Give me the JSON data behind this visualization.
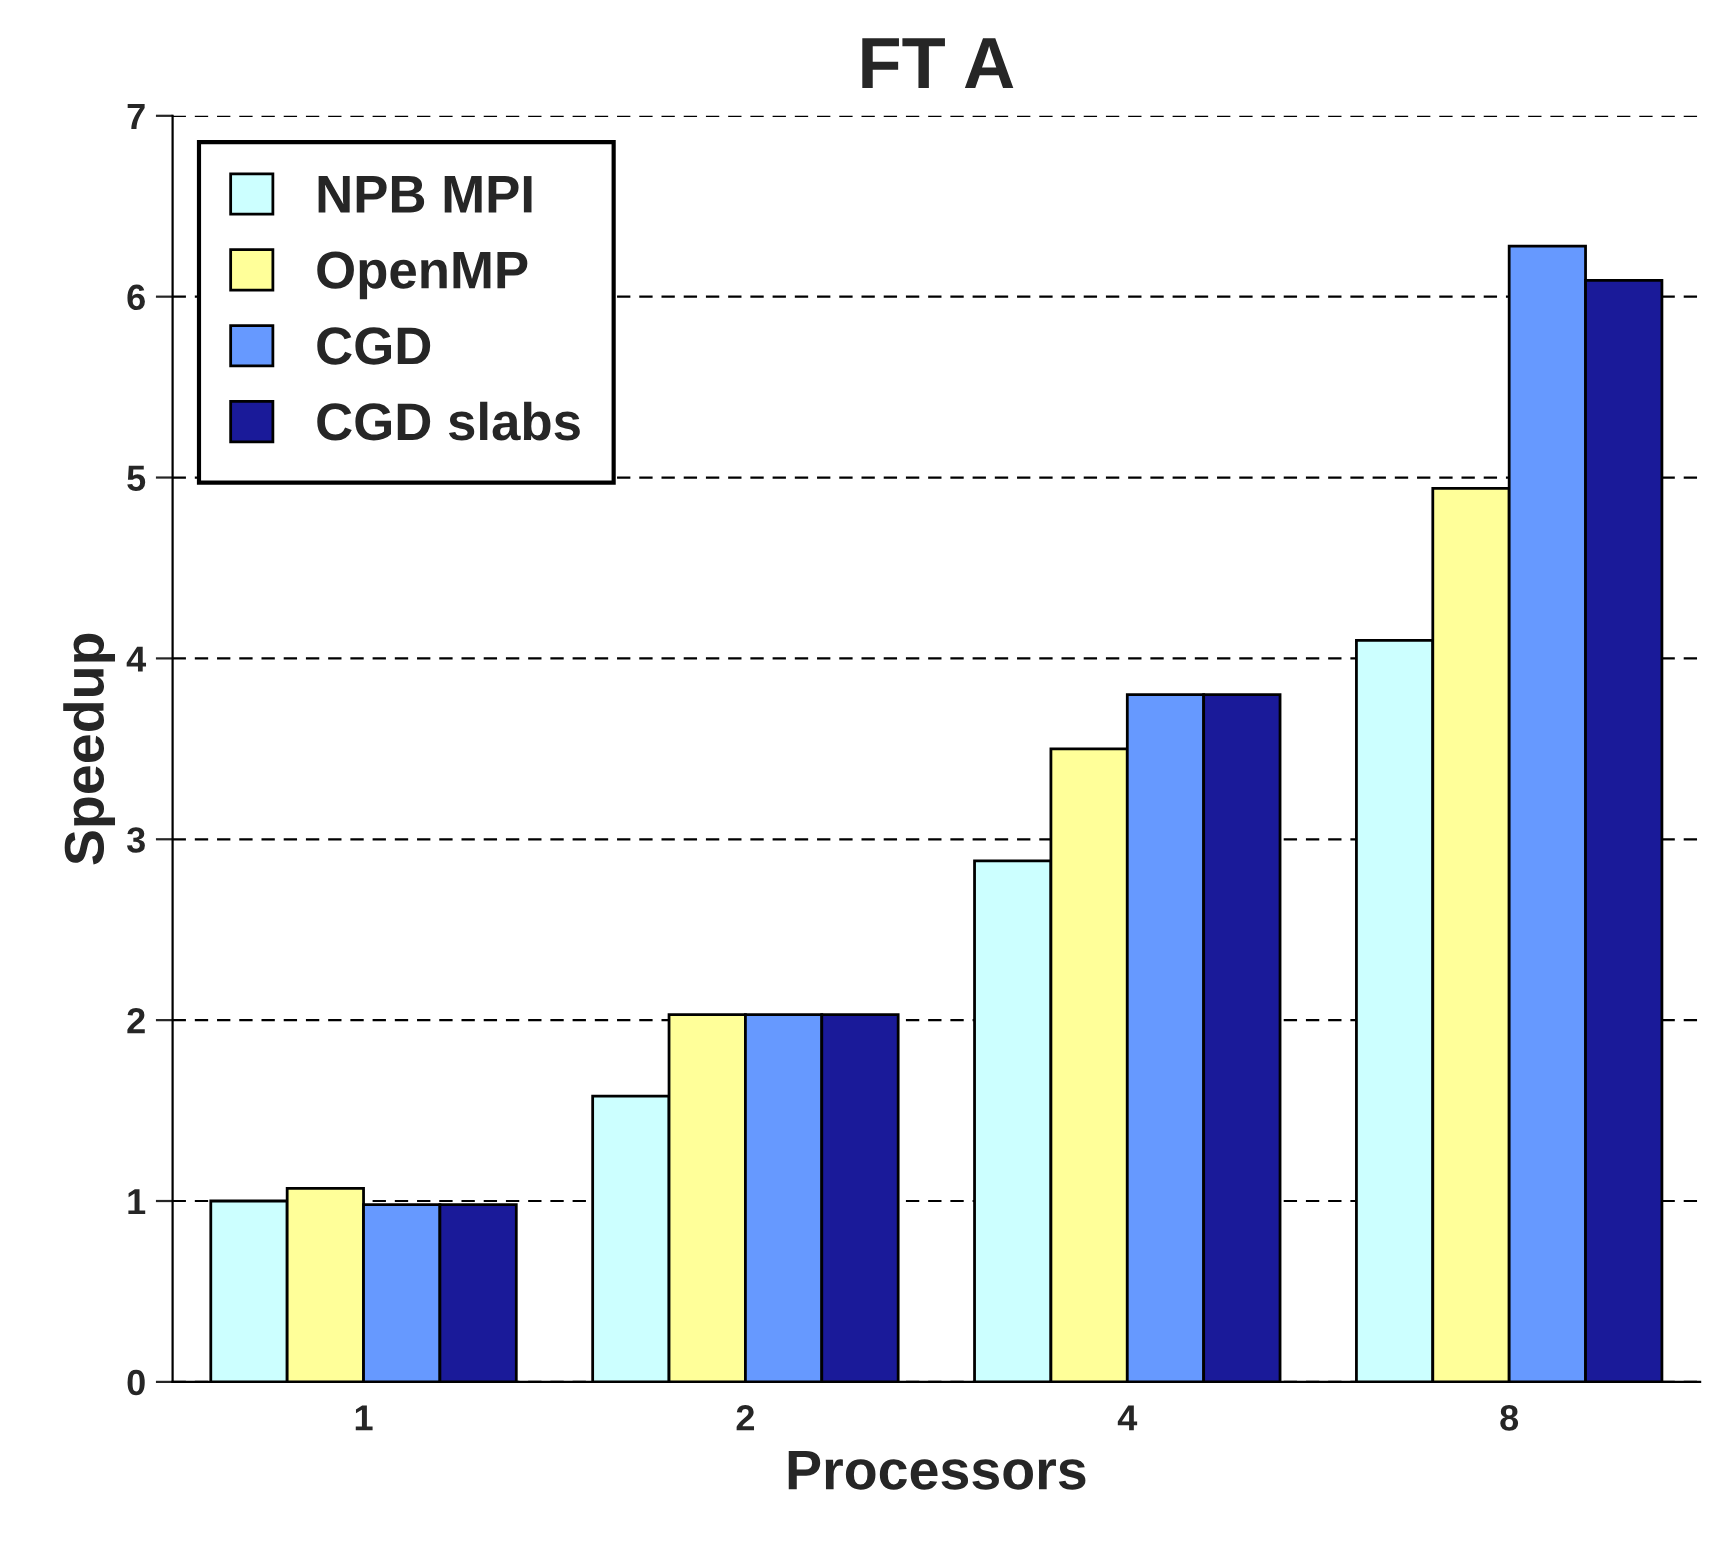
{
  "chart_data": {
    "type": "bar",
    "title": "FT A",
    "xlabel": "Processors",
    "ylabel": "Speedup",
    "categories": [
      "1",
      "2",
      "4",
      "8"
    ],
    "series": [
      {
        "name": "NPB MPI",
        "color": "#ccffff",
        "values": [
          1.0,
          1.58,
          2.88,
          4.1
        ]
      },
      {
        "name": "OpenMP",
        "color": "#ffff99",
        "values": [
          1.07,
          2.03,
          3.5,
          4.94
        ]
      },
      {
        "name": "CGD",
        "color": "#6699ff",
        "values": [
          0.98,
          2.03,
          3.8,
          6.28
        ]
      },
      {
        "name": "CGD slabs",
        "color": "#1a1a99",
        "values": [
          0.98,
          2.03,
          3.8,
          6.09
        ]
      }
    ],
    "ylim": [
      0,
      7
    ],
    "yticks": [
      0,
      1,
      2,
      3,
      4,
      5,
      6,
      7
    ],
    "grid": "y",
    "legend": "top left"
  }
}
